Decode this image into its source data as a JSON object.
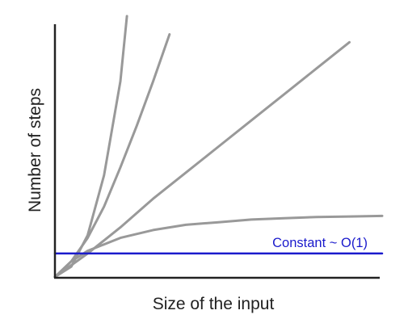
{
  "chart_data": {
    "type": "line",
    "title": "",
    "xlabel": "Size of the input",
    "ylabel": "Number of steps",
    "xlim": [
      0,
      1
    ],
    "ylim": [
      0,
      1
    ],
    "grid": false,
    "ticks": false,
    "colors": {
      "curve": "#999999",
      "highlight": "#1a1acc",
      "axis": "#222222"
    },
    "series": [
      {
        "label": "",
        "highlight": false,
        "x": [
          0,
          0.05,
          0.1,
          0.15,
          0.2,
          0.22
        ],
        "y": [
          0.0,
          0.04,
          0.16,
          0.39,
          0.75,
          1.0
        ]
      },
      {
        "label": "",
        "highlight": false,
        "x": [
          0,
          0.05,
          0.1,
          0.15,
          0.2,
          0.25,
          0.3,
          0.35
        ],
        "y": [
          0.0,
          0.06,
          0.15,
          0.27,
          0.42,
          0.58,
          0.75,
          0.93
        ]
      },
      {
        "label": "",
        "highlight": false,
        "x": [
          0,
          0.1,
          0.2,
          0.3,
          0.4,
          0.5,
          0.6,
          0.7,
          0.8,
          0.9
        ],
        "y": [
          0.0,
          0.09,
          0.19,
          0.3,
          0.4,
          0.5,
          0.6,
          0.7,
          0.8,
          0.9
        ]
      },
      {
        "label": "",
        "highlight": false,
        "x": [
          0,
          0.05,
          0.1,
          0.2,
          0.3,
          0.4,
          0.5,
          0.6,
          0.7,
          0.8,
          0.9,
          1.0
        ],
        "y": [
          0.0,
          0.06,
          0.1,
          0.15,
          0.18,
          0.2,
          0.21,
          0.22,
          0.225,
          0.23,
          0.232,
          0.234
        ]
      },
      {
        "label": "Constant ~ O(1)",
        "highlight": true,
        "x": [
          0,
          1
        ],
        "y": [
          0.09,
          0.09
        ]
      }
    ]
  }
}
